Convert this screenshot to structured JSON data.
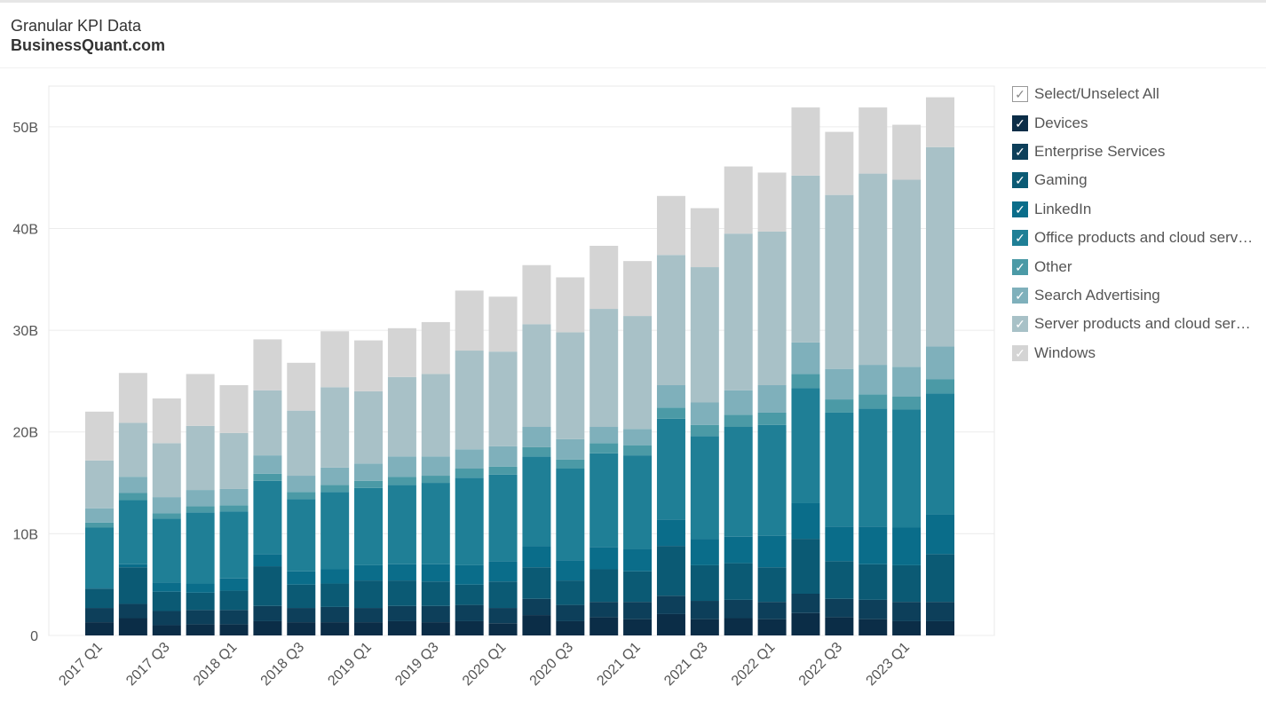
{
  "header": {
    "title": "Granular KPI Data",
    "subtitle": "BusinessQuant.com"
  },
  "legend": {
    "select_all_label": "Select/Unselect All",
    "check_glyph": "✓",
    "items": [
      {
        "label": "Devices",
        "color": "#0b2d47"
      },
      {
        "label": "Enterprise Services",
        "color": "#0d3f5a"
      },
      {
        "label": "Gaming",
        "color": "#0b5a74"
      },
      {
        "label": "LinkedIn",
        "color": "#0a6d8a"
      },
      {
        "label": "Office products and cloud serv…",
        "color": "#1f7f96"
      },
      {
        "label": "Other",
        "color": "#4b9aa6"
      },
      {
        "label": "Search Advertising",
        "color": "#7fb0bb"
      },
      {
        "label": "Server products and cloud ser…",
        "color": "#a8c1c7"
      },
      {
        "label": "Windows",
        "color": "#d4d4d4"
      }
    ]
  },
  "chart_data": {
    "type": "bar",
    "stacked": true,
    "ylim": [
      0,
      54
    ],
    "yticks": [
      0,
      10,
      20,
      30,
      40,
      50
    ],
    "ytick_labels": [
      "0",
      "10B",
      "20B",
      "30B",
      "40B",
      "50B"
    ],
    "grid": true,
    "legend_position": "right",
    "categories": [
      "2017 Q1",
      "2017 Q2",
      "2017 Q3",
      "2017 Q4",
      "2018 Q1",
      "2018 Q2",
      "2018 Q3",
      "2018 Q4",
      "2019 Q1",
      "2019 Q2",
      "2019 Q3",
      "2019 Q4",
      "2020 Q1",
      "2020 Q2",
      "2020 Q3",
      "2020 Q4",
      "2021 Q1",
      "2021 Q2",
      "2021 Q3",
      "2021 Q4",
      "2022 Q1",
      "2022 Q2",
      "2022 Q3",
      "2022 Q4",
      "2023 Q1",
      "2023 Q2"
    ],
    "xtick_labels": [
      "2017 Q1",
      "",
      "2017 Q3",
      "",
      "2018 Q1",
      "",
      "2018 Q3",
      "",
      "2019 Q1",
      "",
      "2019 Q3",
      "",
      "2020 Q1",
      "",
      "2020 Q3",
      "",
      "2021 Q1",
      "",
      "2021 Q3",
      "",
      "2022 Q1",
      "",
      "2022 Q3",
      "",
      "2023 Q1",
      ""
    ],
    "series": [
      {
        "name": "Devices",
        "values": [
          1.3,
          1.7,
          1.0,
          1.1,
          1.1,
          1.4,
          1.3,
          1.3,
          1.3,
          1.4,
          1.3,
          1.4,
          1.2,
          2.0,
          1.4,
          1.8,
          1.6,
          2.1,
          1.6,
          1.7,
          1.6,
          2.2,
          1.8,
          1.6,
          1.4,
          1.4
        ]
      },
      {
        "name": "Enterprise Services",
        "values": [
          1.4,
          1.4,
          1.4,
          1.4,
          1.4,
          1.5,
          1.4,
          1.5,
          1.4,
          1.5,
          1.6,
          1.6,
          1.5,
          1.6,
          1.6,
          1.5,
          1.7,
          1.8,
          1.8,
          1.8,
          1.7,
          1.9,
          1.8,
          1.9,
          1.9,
          1.9
        ]
      },
      {
        "name": "Gaming",
        "values": [
          1.9,
          3.6,
          1.9,
          1.7,
          1.9,
          3.9,
          2.3,
          2.3,
          2.7,
          2.5,
          2.4,
          2.0,
          2.6,
          3.1,
          2.4,
          3.2,
          3.0,
          4.9,
          3.5,
          3.6,
          3.4,
          5.4,
          3.7,
          3.5,
          3.6,
          4.7
        ]
      },
      {
        "name": "LinkedIn",
        "values": [
          0.1,
          0.3,
          0.9,
          0.9,
          1.2,
          1.2,
          1.3,
          1.4,
          1.5,
          1.6,
          1.7,
          1.9,
          2.0,
          2.1,
          2.0,
          2.2,
          2.2,
          2.6,
          2.6,
          2.6,
          3.1,
          3.5,
          3.4,
          3.7,
          3.7,
          3.9
        ]
      },
      {
        "name": "Office products and cloud services",
        "values": [
          5.9,
          6.3,
          6.3,
          7.0,
          6.6,
          7.2,
          7.1,
          7.6,
          7.6,
          7.8,
          8.0,
          8.6,
          8.5,
          8.8,
          9.0,
          9.2,
          9.2,
          9.9,
          10.1,
          10.8,
          10.9,
          11.3,
          11.2,
          11.6,
          11.6,
          11.9
        ]
      },
      {
        "name": "Other",
        "values": [
          0.5,
          0.7,
          0.5,
          0.6,
          0.6,
          0.7,
          0.7,
          0.7,
          0.7,
          0.8,
          0.7,
          0.9,
          0.8,
          0.9,
          0.9,
          1.0,
          1.0,
          1.1,
          1.1,
          1.2,
          1.2,
          1.4,
          1.3,
          1.4,
          1.3,
          1.4
        ]
      },
      {
        "name": "Search Advertising",
        "values": [
          1.4,
          1.6,
          1.6,
          1.6,
          1.6,
          1.8,
          1.6,
          1.7,
          1.7,
          2.0,
          1.9,
          1.9,
          2.0,
          2.0,
          2.0,
          1.6,
          1.6,
          2.2,
          2.2,
          2.4,
          2.7,
          3.1,
          3.0,
          2.9,
          2.9,
          3.2
        ]
      },
      {
        "name": "Server products and cloud services",
        "values": [
          4.7,
          5.3,
          5.3,
          6.3,
          5.5,
          6.4,
          6.4,
          7.9,
          7.1,
          7.8,
          8.1,
          9.7,
          9.3,
          10.1,
          10.5,
          11.6,
          11.1,
          12.8,
          13.3,
          15.4,
          15.1,
          16.4,
          17.1,
          18.8,
          18.4,
          19.6
        ]
      },
      {
        "name": "Windows",
        "values": [
          4.8,
          4.9,
          4.4,
          5.1,
          4.7,
          5.0,
          4.7,
          5.5,
          5.0,
          4.8,
          5.1,
          5.9,
          5.4,
          5.8,
          5.4,
          6.2,
          5.4,
          5.8,
          5.8,
          6.6,
          5.8,
          6.7,
          6.2,
          6.5,
          5.4,
          4.9
        ]
      }
    ]
  }
}
